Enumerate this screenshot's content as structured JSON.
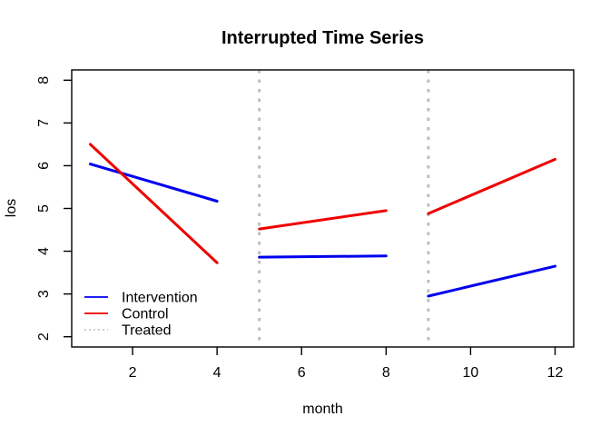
{
  "chart_data": {
    "type": "line",
    "title": "Interrupted Time Series",
    "xlabel": "month",
    "ylabel": "los",
    "xlim": [
      0.56,
      12.44
    ],
    "ylim": [
      1.76,
      8.24
    ],
    "xticks": [
      2,
      4,
      6,
      8,
      10,
      12
    ],
    "yticks": [
      2,
      3,
      4,
      5,
      6,
      7,
      8
    ],
    "grid": false,
    "background": "#ffffff",
    "axis_color": "#000000",
    "line_width": 3,
    "interruption_lines": {
      "x": [
        5,
        9
      ],
      "color": "#bebebe",
      "style": "dotted",
      "semantic": "Treated"
    },
    "series": [
      {
        "name": "Intervention",
        "color": "#0000ee",
        "style": "solid",
        "segments": [
          {
            "x": [
              1,
              4
            ],
            "y": [
              6.04,
              5.17
            ]
          },
          {
            "x": [
              5,
              8
            ],
            "y": [
              3.86,
              3.89
            ]
          },
          {
            "x": [
              9,
              12
            ],
            "y": [
              2.95,
              3.65
            ]
          }
        ]
      },
      {
        "name": "Control",
        "color": "#ee0000",
        "style": "solid",
        "segments": [
          {
            "x": [
              1,
              4
            ],
            "y": [
              6.5,
              3.73
            ]
          },
          {
            "x": [
              5,
              8
            ],
            "y": [
              4.52,
              4.95
            ]
          },
          {
            "x": [
              9,
              12
            ],
            "y": [
              4.88,
              6.15
            ]
          }
        ]
      }
    ],
    "legend": {
      "position": "bottom-left",
      "entries": [
        {
          "label": "Intervention",
          "color": "#0000ee",
          "style": "solid"
        },
        {
          "label": "Control",
          "color": "#ee0000",
          "style": "solid"
        },
        {
          "label": "Treated",
          "color": "#bebebe",
          "style": "dotted"
        }
      ]
    }
  }
}
